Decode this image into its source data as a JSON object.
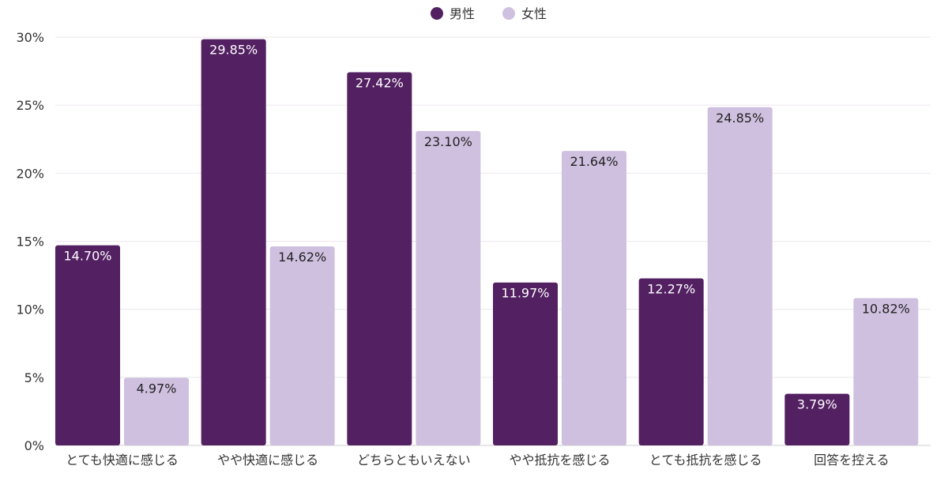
{
  "chart_data": {
    "type": "bar",
    "title": "",
    "xlabel": "",
    "ylabel": "",
    "ylim": [
      0,
      30
    ],
    "yticks": [
      0,
      5,
      10,
      15,
      20,
      25,
      30
    ],
    "ytick_suffix": "%",
    "grid": true,
    "legend": "top-center",
    "categories": [
      "とても快適に感じる",
      "やや快適に感じる",
      "どちらともいえない",
      "やや抵抗を感じる",
      "とても抵抗を感じる",
      "回答を控える"
    ],
    "series": [
      {
        "name": "男性",
        "color": "#532062",
        "label_color": "#ffffff",
        "values": [
          14.7,
          29.85,
          27.42,
          11.97,
          12.27,
          3.79
        ],
        "labels": [
          "14.70%",
          "29.85%",
          "27.42%",
          "11.97%",
          "12.27%",
          "3.79%"
        ]
      },
      {
        "name": "女性",
        "color": "#cfc0e0",
        "label_color": "#222222",
        "values": [
          4.97,
          14.62,
          23.1,
          21.64,
          24.85,
          10.82
        ],
        "labels": [
          "4.97%",
          "14.62%",
          "23.10%",
          "21.64%",
          "24.85%",
          "10.82%"
        ]
      }
    ]
  }
}
